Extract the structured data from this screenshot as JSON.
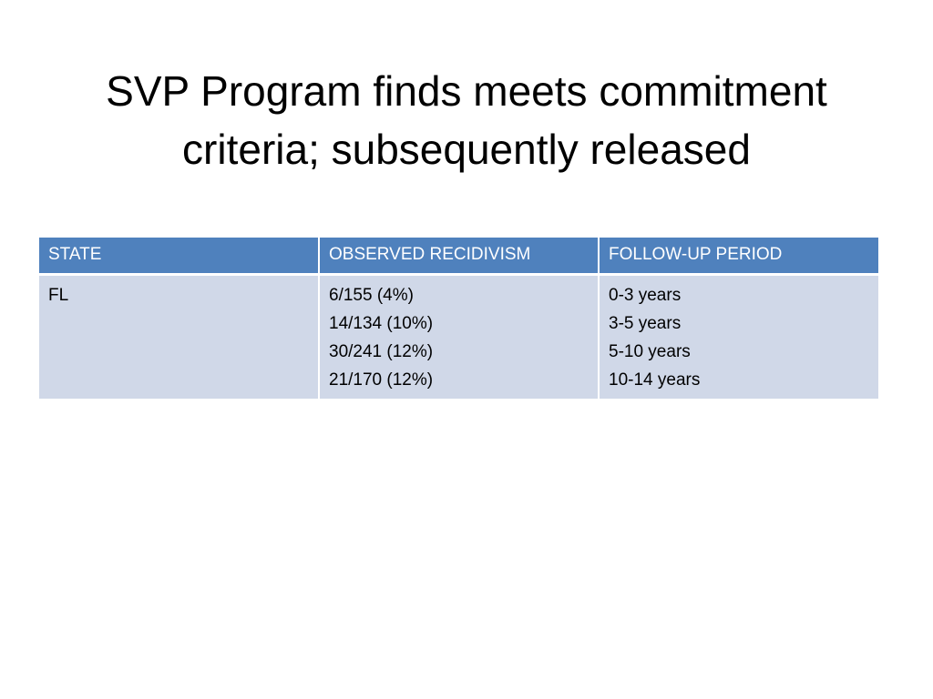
{
  "slide": {
    "title_line1": "SVP Program finds meets commitment",
    "title_line2": "criteria; subsequently released"
  },
  "table": {
    "headers": [
      "STATE",
      "OBSERVED RECIDIVISM",
      "FOLLOW-UP PERIOD"
    ],
    "rows": [
      {
        "state": "FL",
        "observed_recidivism": [
          "6/155 (4%)",
          "14/134 (10%)",
          "30/241 (12%)",
          "21/170 (12%)"
        ],
        "follow_up_period": [
          "0-3 years",
          "3-5 years",
          "5-10 years",
          "10-14 years"
        ]
      }
    ]
  },
  "colors": {
    "header_bg": "#4f81bd",
    "header_text": "#ffffff",
    "cell_bg": "#d0d8e8",
    "text": "#000000"
  }
}
